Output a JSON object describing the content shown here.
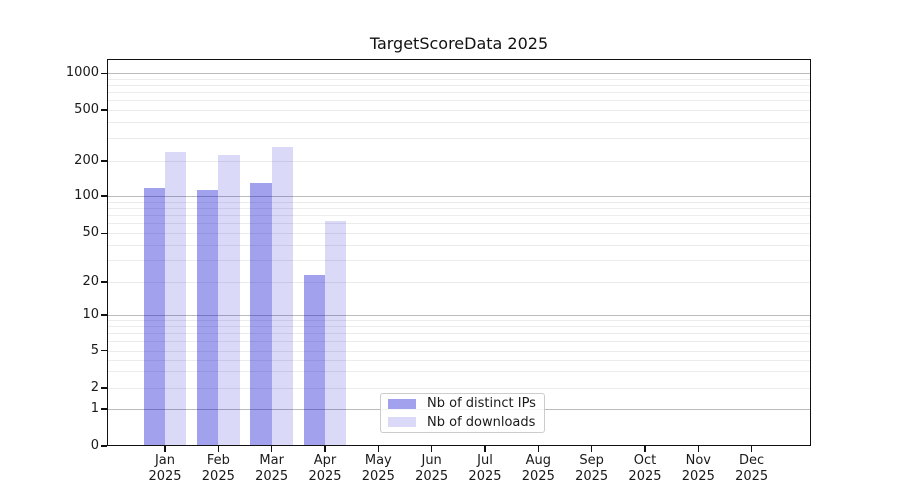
{
  "title": "TargetScoreData 2025",
  "chart_data": {
    "type": "bar",
    "title": "TargetScoreData 2025",
    "categories": [
      "Jan 2025",
      "Feb 2025",
      "Mar 2025",
      "Apr 2025",
      "May 2025",
      "Jun 2025",
      "Jul 2025",
      "Aug 2025",
      "Sep 2025",
      "Oct 2025",
      "Nov 2025",
      "Dec 2025"
    ],
    "series": [
      {
        "name": "Nb of distinct IPs",
        "color": "#a2a2ef",
        "fill": "rgba(0,0,210,0.37)",
        "values": [
          118,
          112,
          130,
          23,
          0,
          0,
          0,
          0,
          0,
          0,
          0,
          0
        ]
      },
      {
        "name": "Nb of downloads",
        "color": "#dadaf8",
        "fill": "rgba(0,0,210,0.145)",
        "values": [
          236,
          223,
          259,
          63,
          0,
          0,
          0,
          0,
          0,
          0,
          0,
          0
        ]
      }
    ],
    "y_axis": {
      "ticks": [
        0,
        1,
        2,
        5,
        10,
        20,
        50,
        100,
        200,
        500,
        1000
      ],
      "scale": "symlog",
      "major_grid_values": [
        1,
        10,
        100,
        1000
      ],
      "ylim_bottom": 0
    },
    "x_axis": {
      "label_year_line": "2025"
    },
    "grid": "both",
    "legend": {
      "position": "lower-center-inside"
    },
    "colors": {
      "major_grid": "#bbbbbb",
      "minor_grid": "#ececec",
      "text": "#1a1a1a",
      "spine": "#111111"
    }
  }
}
